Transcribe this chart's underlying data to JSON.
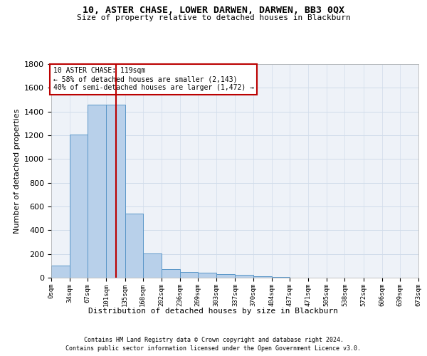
{
  "title": "10, ASTER CHASE, LOWER DARWEN, DARWEN, BB3 0QX",
  "subtitle": "Size of property relative to detached houses in Blackburn",
  "xlabel": "Distribution of detached houses by size in Blackburn",
  "ylabel": "Number of detached properties",
  "bar_color": "#b8d0ea",
  "bar_edge_color": "#5a96c8",
  "grid_color": "#d0dcea",
  "background_color": "#eef2f8",
  "vline_x": 119,
  "vline_color": "#bb0000",
  "annotation_box_color": "#bb0000",
  "annotation_lines": [
    "10 ASTER CHASE: 119sqm",
    "← 58% of detached houses are smaller (2,143)",
    "40% of semi-detached houses are larger (1,472) →"
  ],
  "bin_edges": [
    0,
    34,
    67,
    101,
    135,
    168,
    202,
    236,
    269,
    303,
    337,
    370,
    404,
    437,
    471,
    505,
    538,
    572,
    606,
    639,
    673
  ],
  "bin_counts": [
    100,
    1205,
    1460,
    1460,
    540,
    205,
    70,
    50,
    40,
    30,
    25,
    15,
    8,
    0,
    0,
    0,
    0,
    0,
    0,
    0
  ],
  "ylim": [
    0,
    1800
  ],
  "yticks": [
    0,
    200,
    400,
    600,
    800,
    1000,
    1200,
    1400,
    1600,
    1800
  ],
  "footnote_line1": "Contains HM Land Registry data © Crown copyright and database right 2024.",
  "footnote_line2": "Contains public sector information licensed under the Open Government Licence v3.0.",
  "figsize": [
    6.0,
    5.0
  ],
  "dpi": 100
}
